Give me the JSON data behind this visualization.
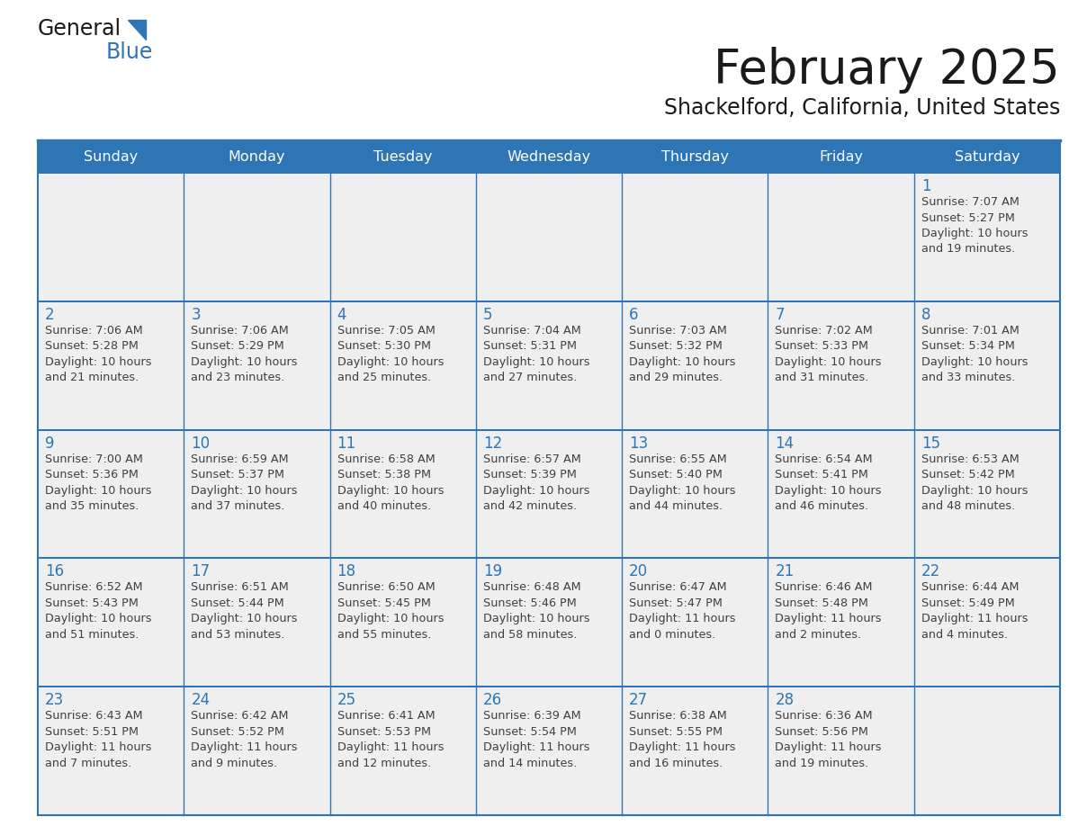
{
  "title": "February 2025",
  "subtitle": "Shackelford, California, United States",
  "days_of_week": [
    "Sunday",
    "Monday",
    "Tuesday",
    "Wednesday",
    "Thursday",
    "Friday",
    "Saturday"
  ],
  "header_bg_color": "#2E75B6",
  "header_text_color": "#FFFFFF",
  "cell_bg_color": "#EFEFEF",
  "cell_bg_color2": "#FFFFFF",
  "border_color": "#2E75B6",
  "day_number_color": "#2E75B6",
  "info_text_color": "#404040",
  "calendar_data": [
    [
      null,
      null,
      null,
      null,
      null,
      null,
      {
        "day": 1,
        "sunrise": "7:07 AM",
        "sunset": "5:27 PM",
        "daylight_line1": "10 hours",
        "daylight_line2": "and 19 minutes."
      }
    ],
    [
      {
        "day": 2,
        "sunrise": "7:06 AM",
        "sunset": "5:28 PM",
        "daylight_line1": "10 hours",
        "daylight_line2": "and 21 minutes."
      },
      {
        "day": 3,
        "sunrise": "7:06 AM",
        "sunset": "5:29 PM",
        "daylight_line1": "10 hours",
        "daylight_line2": "and 23 minutes."
      },
      {
        "day": 4,
        "sunrise": "7:05 AM",
        "sunset": "5:30 PM",
        "daylight_line1": "10 hours",
        "daylight_line2": "and 25 minutes."
      },
      {
        "day": 5,
        "sunrise": "7:04 AM",
        "sunset": "5:31 PM",
        "daylight_line1": "10 hours",
        "daylight_line2": "and 27 minutes."
      },
      {
        "day": 6,
        "sunrise": "7:03 AM",
        "sunset": "5:32 PM",
        "daylight_line1": "10 hours",
        "daylight_line2": "and 29 minutes."
      },
      {
        "day": 7,
        "sunrise": "7:02 AM",
        "sunset": "5:33 PM",
        "daylight_line1": "10 hours",
        "daylight_line2": "and 31 minutes."
      },
      {
        "day": 8,
        "sunrise": "7:01 AM",
        "sunset": "5:34 PM",
        "daylight_line1": "10 hours",
        "daylight_line2": "and 33 minutes."
      }
    ],
    [
      {
        "day": 9,
        "sunrise": "7:00 AM",
        "sunset": "5:36 PM",
        "daylight_line1": "10 hours",
        "daylight_line2": "and 35 minutes."
      },
      {
        "day": 10,
        "sunrise": "6:59 AM",
        "sunset": "5:37 PM",
        "daylight_line1": "10 hours",
        "daylight_line2": "and 37 minutes."
      },
      {
        "day": 11,
        "sunrise": "6:58 AM",
        "sunset": "5:38 PM",
        "daylight_line1": "10 hours",
        "daylight_line2": "and 40 minutes."
      },
      {
        "day": 12,
        "sunrise": "6:57 AM",
        "sunset": "5:39 PM",
        "daylight_line1": "10 hours",
        "daylight_line2": "and 42 minutes."
      },
      {
        "day": 13,
        "sunrise": "6:55 AM",
        "sunset": "5:40 PM",
        "daylight_line1": "10 hours",
        "daylight_line2": "and 44 minutes."
      },
      {
        "day": 14,
        "sunrise": "6:54 AM",
        "sunset": "5:41 PM",
        "daylight_line1": "10 hours",
        "daylight_line2": "and 46 minutes."
      },
      {
        "day": 15,
        "sunrise": "6:53 AM",
        "sunset": "5:42 PM",
        "daylight_line1": "10 hours",
        "daylight_line2": "and 48 minutes."
      }
    ],
    [
      {
        "day": 16,
        "sunrise": "6:52 AM",
        "sunset": "5:43 PM",
        "daylight_line1": "10 hours",
        "daylight_line2": "and 51 minutes."
      },
      {
        "day": 17,
        "sunrise": "6:51 AM",
        "sunset": "5:44 PM",
        "daylight_line1": "10 hours",
        "daylight_line2": "and 53 minutes."
      },
      {
        "day": 18,
        "sunrise": "6:50 AM",
        "sunset": "5:45 PM",
        "daylight_line1": "10 hours",
        "daylight_line2": "and 55 minutes."
      },
      {
        "day": 19,
        "sunrise": "6:48 AM",
        "sunset": "5:46 PM",
        "daylight_line1": "10 hours",
        "daylight_line2": "and 58 minutes."
      },
      {
        "day": 20,
        "sunrise": "6:47 AM",
        "sunset": "5:47 PM",
        "daylight_line1": "11 hours",
        "daylight_line2": "and 0 minutes."
      },
      {
        "day": 21,
        "sunrise": "6:46 AM",
        "sunset": "5:48 PM",
        "daylight_line1": "11 hours",
        "daylight_line2": "and 2 minutes."
      },
      {
        "day": 22,
        "sunrise": "6:44 AM",
        "sunset": "5:49 PM",
        "daylight_line1": "11 hours",
        "daylight_line2": "and 4 minutes."
      }
    ],
    [
      {
        "day": 23,
        "sunrise": "6:43 AM",
        "sunset": "5:51 PM",
        "daylight_line1": "11 hours",
        "daylight_line2": "and 7 minutes."
      },
      {
        "day": 24,
        "sunrise": "6:42 AM",
        "sunset": "5:52 PM",
        "daylight_line1": "11 hours",
        "daylight_line2": "and 9 minutes."
      },
      {
        "day": 25,
        "sunrise": "6:41 AM",
        "sunset": "5:53 PM",
        "daylight_line1": "11 hours",
        "daylight_line2": "and 12 minutes."
      },
      {
        "day": 26,
        "sunrise": "6:39 AM",
        "sunset": "5:54 PM",
        "daylight_line1": "11 hours",
        "daylight_line2": "and 14 minutes."
      },
      {
        "day": 27,
        "sunrise": "6:38 AM",
        "sunset": "5:55 PM",
        "daylight_line1": "11 hours",
        "daylight_line2": "and 16 minutes."
      },
      {
        "day": 28,
        "sunrise": "6:36 AM",
        "sunset": "5:56 PM",
        "daylight_line1": "11 hours",
        "daylight_line2": "and 19 minutes."
      },
      null
    ]
  ],
  "fig_width": 11.88,
  "fig_height": 9.18,
  "dpi": 100
}
